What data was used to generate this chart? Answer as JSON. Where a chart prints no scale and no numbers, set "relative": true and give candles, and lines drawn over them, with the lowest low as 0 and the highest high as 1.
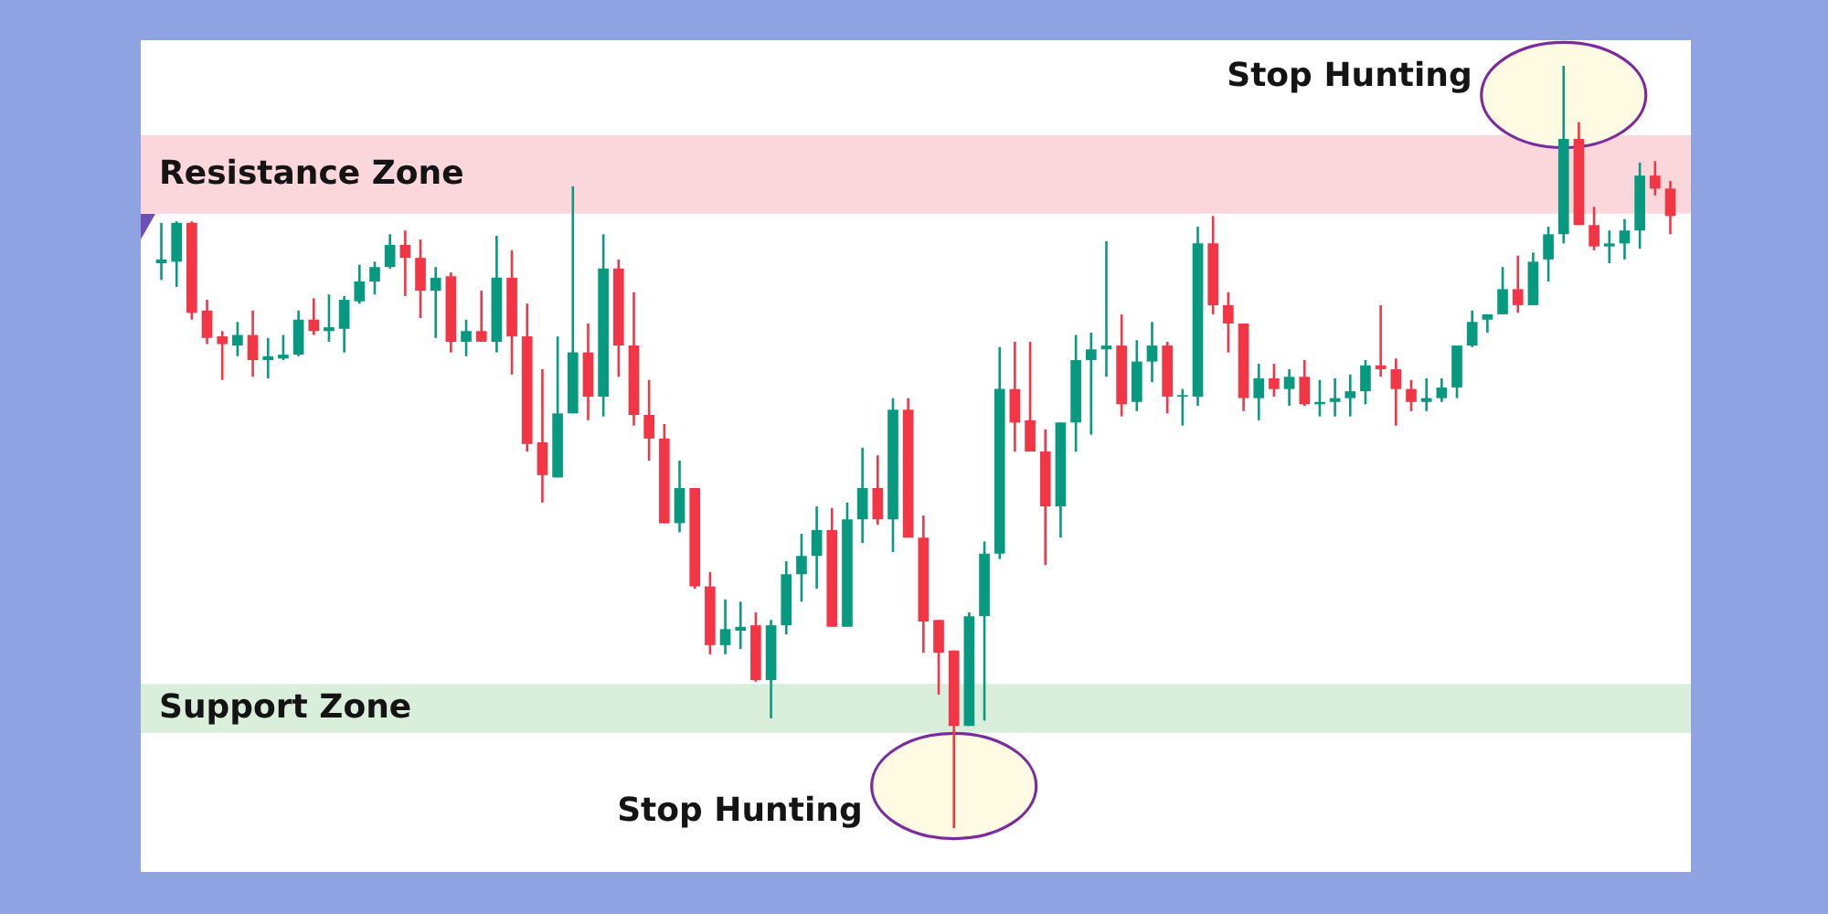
{
  "chart_data": {
    "type": "candlestick",
    "relative": true,
    "categories": [
      null,
      null,
      null,
      null,
      null,
      null,
      null,
      null,
      null,
      null,
      null,
      null,
      null,
      null,
      null,
      null,
      null,
      null,
      null,
      null,
      null,
      null,
      null,
      null,
      null,
      null,
      null,
      null,
      null,
      null,
      null,
      null,
      null,
      null,
      null,
      null,
      null,
      null,
      null,
      null,
      null,
      null,
      null,
      null,
      null,
      null,
      null,
      null,
      null,
      null,
      null,
      null,
      null,
      null,
      null,
      null,
      null,
      null,
      null,
      null,
      null,
      null,
      null,
      null,
      null,
      null,
      null,
      null,
      null,
      null,
      null,
      null,
      null,
      null,
      null,
      null,
      null,
      null,
      null,
      null,
      null,
      null,
      null,
      null,
      null,
      null,
      null,
      null,
      null,
      null,
      null,
      null,
      null,
      null,
      null,
      null,
      null,
      null,
      null,
      null
    ],
    "ohlc": [
      [
        0.741,
        0.794,
        0.719,
        0.746
      ],
      [
        0.743,
        0.796,
        0.71,
        0.794
      ],
      [
        0.794,
        0.796,
        0.667,
        0.676
      ],
      [
        0.679,
        0.693,
        0.635,
        0.643
      ],
      [
        0.645,
        0.652,
        0.588,
        0.635
      ],
      [
        0.633,
        0.664,
        0.619,
        0.647
      ],
      [
        0.647,
        0.679,
        0.592,
        0.614
      ],
      [
        0.614,
        0.643,
        0.59,
        0.619
      ],
      [
        0.616,
        0.647,
        0.614,
        0.621
      ],
      [
        0.621,
        0.679,
        0.619,
        0.667
      ],
      [
        0.667,
        0.695,
        0.647,
        0.652
      ],
      [
        0.652,
        0.7,
        0.638,
        0.657
      ],
      [
        0.655,
        0.698,
        0.624,
        0.693
      ],
      [
        0.691,
        0.739,
        0.688,
        0.717
      ],
      [
        0.717,
        0.743,
        0.7,
        0.736
      ],
      [
        0.736,
        0.779,
        0.734,
        0.765
      ],
      [
        0.765,
        0.784,
        0.698,
        0.748
      ],
      [
        0.748,
        0.772,
        0.669,
        0.705
      ],
      [
        0.705,
        0.736,
        0.643,
        0.722
      ],
      [
        0.724,
        0.729,
        0.624,
        0.638
      ],
      [
        0.638,
        0.667,
        0.619,
        0.652
      ],
      [
        0.652,
        0.705,
        0.638,
        0.638
      ],
      [
        0.638,
        0.777,
        0.624,
        0.722
      ],
      [
        0.722,
        0.758,
        0.595,
        0.645
      ],
      [
        0.645,
        0.688,
        0.494,
        0.504
      ],
      [
        0.506,
        0.602,
        0.427,
        0.463
      ],
      [
        0.46,
        0.645,
        0.46,
        0.544
      ],
      [
        0.544,
        0.842,
        0.544,
        0.624
      ],
      [
        0.624,
        0.662,
        0.535,
        0.566
      ],
      [
        0.566,
        0.779,
        0.54,
        0.734
      ],
      [
        0.734,
        0.746,
        0.592,
        0.633
      ],
      [
        0.633,
        0.703,
        0.528,
        0.542
      ],
      [
        0.542,
        0.588,
        0.482,
        0.511
      ],
      [
        0.511,
        0.53,
        0.4,
        0.4
      ],
      [
        0.4,
        0.482,
        0.388,
        0.446
      ],
      [
        0.446,
        0.446,
        0.314,
        0.317
      ],
      [
        0.317,
        0.336,
        0.228,
        0.24
      ],
      [
        0.24,
        0.3,
        0.228,
        0.261
      ],
      [
        0.259,
        0.297,
        0.235,
        0.264
      ],
      [
        0.266,
        0.283,
        0.192,
        0.194
      ],
      [
        0.194,
        0.273,
        0.144,
        0.266
      ],
      [
        0.266,
        0.35,
        0.254,
        0.333
      ],
      [
        0.333,
        0.386,
        0.297,
        0.357
      ],
      [
        0.357,
        0.422,
        0.314,
        0.391
      ],
      [
        0.391,
        0.42,
        0.264,
        0.264
      ],
      [
        0.264,
        0.427,
        0.264,
        0.405
      ],
      [
        0.405,
        0.499,
        0.374,
        0.446
      ],
      [
        0.446,
        0.489,
        0.398,
        0.405
      ],
      [
        0.405,
        0.564,
        0.362,
        0.549
      ],
      [
        0.549,
        0.564,
        0.381,
        0.381
      ],
      [
        0.381,
        0.41,
        0.23,
        0.271
      ],
      [
        0.273,
        0.273,
        0.175,
        0.23
      ],
      [
        0.233,
        0.233,
        0,
        0.134
      ],
      [
        0.134,
        0.283,
        0.134,
        0.278
      ],
      [
        0.278,
        0.376,
        0.141,
        0.36
      ],
      [
        0.36,
        0.631,
        0.353,
        0.576
      ],
      [
        0.576,
        0.638,
        0.494,
        0.532
      ],
      [
        0.535,
        0.638,
        0.494,
        0.494
      ],
      [
        0.494,
        0.523,
        0.345,
        0.422
      ],
      [
        0.422,
        0.532,
        0.381,
        0.532
      ],
      [
        0.532,
        0.647,
        0.494,
        0.614
      ],
      [
        0.614,
        0.65,
        0.516,
        0.628
      ],
      [
        0.628,
        0.77,
        0.592,
        0.633
      ],
      [
        0.633,
        0.674,
        0.54,
        0.556
      ],
      [
        0.559,
        0.64,
        0.547,
        0.612
      ],
      [
        0.612,
        0.664,
        0.585,
        0.633
      ],
      [
        0.633,
        0.638,
        0.544,
        0.566
      ],
      [
        0.566,
        0.576,
        0.528,
        0.568
      ],
      [
        0.566,
        0.789,
        0.554,
        0.767
      ],
      [
        0.767,
        0.803,
        0.674,
        0.686
      ],
      [
        0.686,
        0.703,
        0.624,
        0.662
      ],
      [
        0.662,
        0.662,
        0.547,
        0.564
      ],
      [
        0.564,
        0.609,
        0.535,
        0.59
      ],
      [
        0.59,
        0.609,
        0.566,
        0.576
      ],
      [
        0.576,
        0.602,
        0.554,
        0.592
      ],
      [
        0.592,
        0.614,
        0.554,
        0.556
      ],
      [
        0.556,
        0.588,
        0.54,
        0.559
      ],
      [
        0.559,
        0.59,
        0.54,
        0.564
      ],
      [
        0.564,
        0.595,
        0.54,
        0.573
      ],
      [
        0.573,
        0.614,
        0.556,
        0.607
      ],
      [
        0.607,
        0.686,
        0.592,
        0.602
      ],
      [
        0.602,
        0.616,
        0.528,
        0.576
      ],
      [
        0.576,
        0.588,
        0.547,
        0.559
      ],
      [
        0.559,
        0.59,
        0.547,
        0.564
      ],
      [
        0.564,
        0.59,
        0.559,
        0.578
      ],
      [
        0.578,
        0.633,
        0.564,
        0.633
      ],
      [
        0.633,
        0.679,
        0.631,
        0.664
      ],
      [
        0.667,
        0.674,
        0.65,
        0.674
      ],
      [
        0.674,
        0.736,
        0.674,
        0.707
      ],
      [
        0.707,
        0.751,
        0.676,
        0.686
      ],
      [
        0.686,
        0.755,
        0.686,
        0.743
      ],
      [
        0.746,
        0.789,
        0.717,
        0.779
      ],
      [
        0.779,
        1,
        0.767,
        0.904
      ],
      [
        0.904,
        0.926,
        0.791,
        0.791
      ],
      [
        0.791,
        0.815,
        0.758,
        0.763
      ],
      [
        0.763,
        0.784,
        0.741,
        0.767
      ],
      [
        0.767,
        0.799,
        0.746,
        0.784
      ],
      [
        0.784,
        0.873,
        0.76,
        0.856
      ],
      [
        0.856,
        0.875,
        0.83,
        0.839
      ],
      [
        0.839,
        0.849,
        0.779,
        0.803
      ]
    ],
    "colors": [
      "#089981",
      "#089981",
      "#f23645",
      "#f23645",
      "#f23645",
      "#089981",
      "#f23645",
      "#089981",
      "#089981",
      "#089981",
      "#f23645",
      "#089981",
      "#089981",
      "#089981",
      "#089981",
      "#089981",
      "#f23645",
      "#f23645",
      "#089981",
      "#f23645",
      "#089981",
      "#f23645",
      "#089981",
      "#f23645",
      "#f23645",
      "#f23645",
      "#089981",
      "#089981",
      "#f23645",
      "#089981",
      "#f23645",
      "#f23645",
      "#f23645",
      "#f23645",
      "#089981",
      "#f23645",
      "#f23645",
      "#089981",
      "#089981",
      "#f23645",
      "#089981",
      "#089981",
      "#089981",
      "#089981",
      "#f23645",
      "#089981",
      "#089981",
      "#f23645",
      "#089981",
      "#f23645",
      "#f23645",
      "#f23645",
      "#f23645",
      "#089981",
      "#089981",
      "#089981",
      "#f23645",
      "#f23645",
      "#f23645",
      "#089981",
      "#089981",
      "#089981",
      "#089981",
      "#f23645",
      "#089981",
      "#089981",
      "#f23645",
      "#089981",
      "#089981",
      "#f23645",
      "#f23645",
      "#f23645",
      "#089981",
      "#f23645",
      "#089981",
      "#f23645",
      "#089981",
      "#089981",
      "#089981",
      "#089981",
      "#f23645",
      "#f23645",
      "#f23645",
      "#089981",
      "#089981",
      "#089981",
      "#089981",
      "#089981",
      "#089981",
      "#f23645",
      "#089981",
      "#089981",
      "#089981",
      "#f23645",
      "#f23645",
      "#089981",
      "#089981",
      "#089981",
      "#f23645",
      "#f23645"
    ],
    "bands": [
      {
        "axis": "y",
        "from": 0.806,
        "to": 0.909,
        "label": "Resistance Zone",
        "color": "#fbd6da"
      },
      {
        "axis": "y",
        "from": 0.125,
        "to": 0.189,
        "label": "Support Zone",
        "color": "#d9eedb"
      }
    ],
    "annotations": [
      "Stop Hunting",
      "Stop Hunting"
    ]
  }
}
